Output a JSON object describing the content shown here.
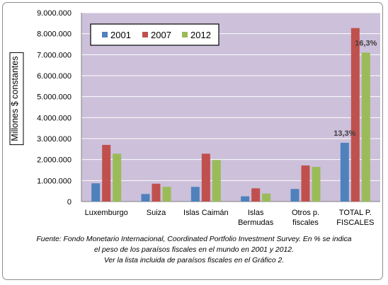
{
  "chart_data": {
    "type": "bar",
    "title": "",
    "xlabel": "",
    "ylabel": "Millones $ constantes",
    "ylim": [
      0,
      9000000
    ],
    "yticks": [
      0,
      1000000,
      2000000,
      3000000,
      4000000,
      5000000,
      6000000,
      7000000,
      8000000,
      9000000
    ],
    "ytick_labels": [
      "0",
      "1.000.000",
      "2.000.000",
      "3.000.000",
      "4.000.000",
      "5.000.000",
      "6.000.000",
      "7.000.000",
      "8.000.000",
      "9.000.000"
    ],
    "grid": true,
    "legend_position": "top-left",
    "categories": [
      [
        "Luxemburgo"
      ],
      [
        "Suiza"
      ],
      [
        "Islas Caimán"
      ],
      [
        "Islas",
        "Bermudas"
      ],
      [
        "Otros p.",
        "fiscales"
      ],
      [
        "TOTAL P.",
        "FISCALES"
      ]
    ],
    "series": [
      {
        "name": "2001",
        "color": "#4f81bd",
        "values": [
          870000,
          360000,
          700000,
          250000,
          600000,
          2800000
        ]
      },
      {
        "name": "2007",
        "color": "#c0504d",
        "values": [
          2700000,
          850000,
          2280000,
          630000,
          1720000,
          8270000
        ]
      },
      {
        "name": "2012",
        "color": "#9bbb59",
        "values": [
          2280000,
          700000,
          1980000,
          380000,
          1650000,
          7100000
        ]
      }
    ],
    "annotations": [
      {
        "text": "13,3%",
        "category_index": 5,
        "series_index": 0
      },
      {
        "text": "16,3%",
        "category_index": 5,
        "series_index": 2
      }
    ],
    "plot_background": "#ccc0da",
    "gridline_color": "#ffffff"
  },
  "caption": {
    "lines": [
      "Fuente: Fondo Monetario Internacional, Coordinated Portfolio Investment Survey.  En % se indica",
      "el peso de los paraísos fiscales en el mundo en 2001 y 2012.",
      "Ver la lista incluida de paraísos fiscales en el Gráfico 2."
    ]
  }
}
